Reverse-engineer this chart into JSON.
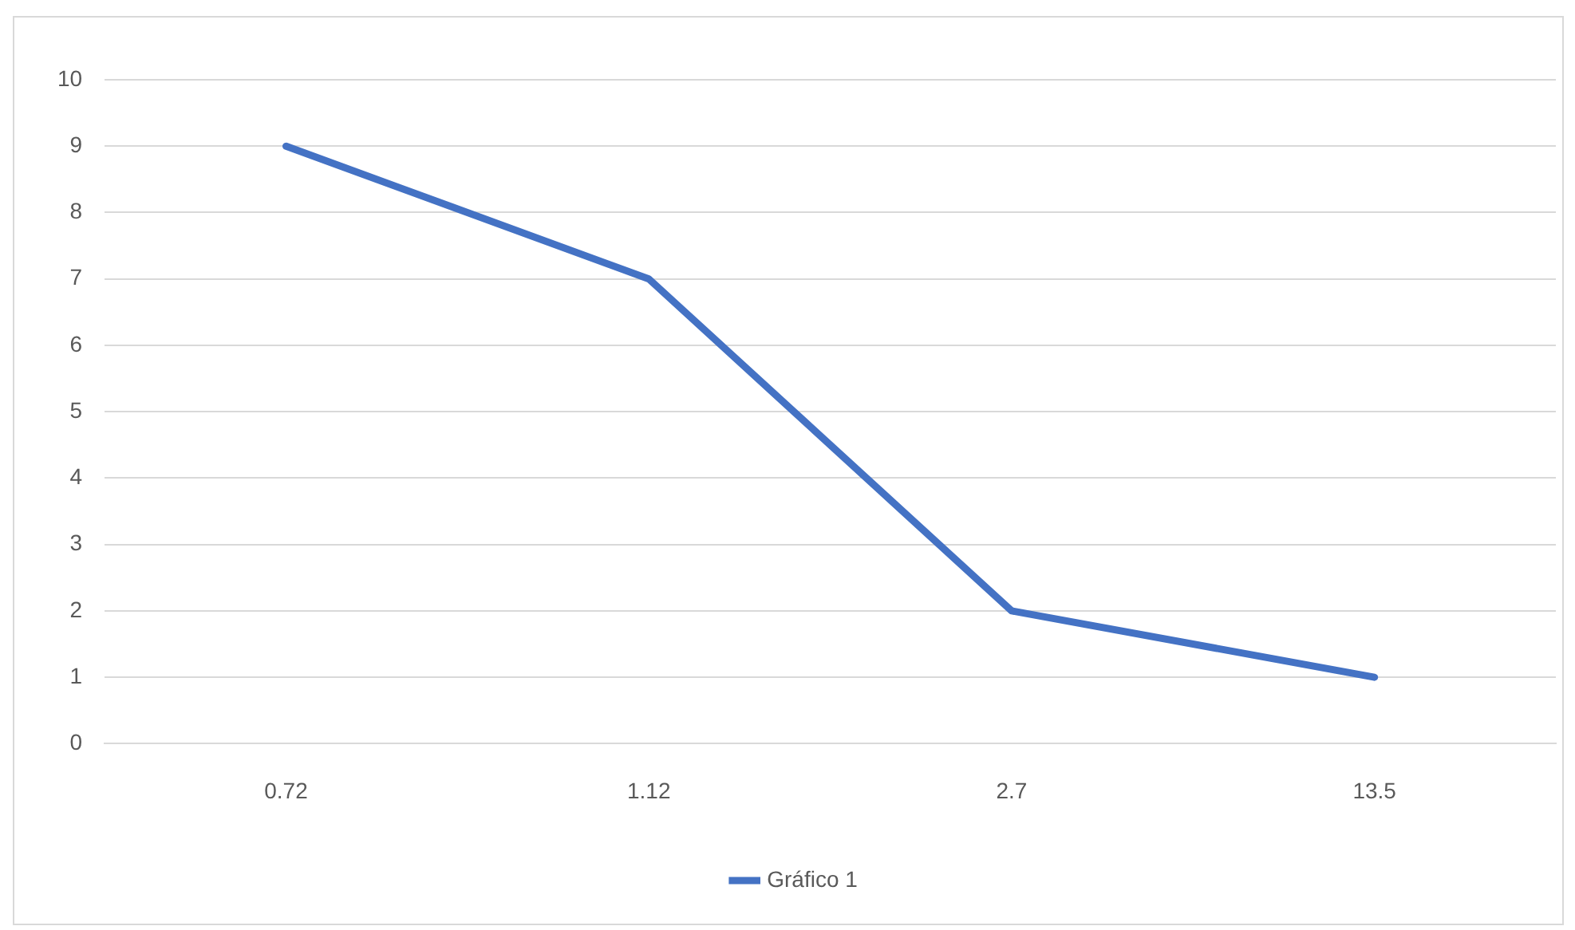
{
  "chart_data": {
    "type": "line",
    "categories": [
      "0.72",
      "1.12",
      "2.7",
      "13.5"
    ],
    "series": [
      {
        "name": "Gráfico 1",
        "color": "#4472c4",
        "values": [
          9,
          7,
          2,
          1
        ]
      }
    ],
    "ylim": [
      0,
      10
    ],
    "yticks": [
      0,
      1,
      2,
      3,
      4,
      5,
      6,
      7,
      8,
      9,
      10
    ],
    "grid": "y",
    "legend": "bottom",
    "marker": "none",
    "line_style": "solid"
  }
}
